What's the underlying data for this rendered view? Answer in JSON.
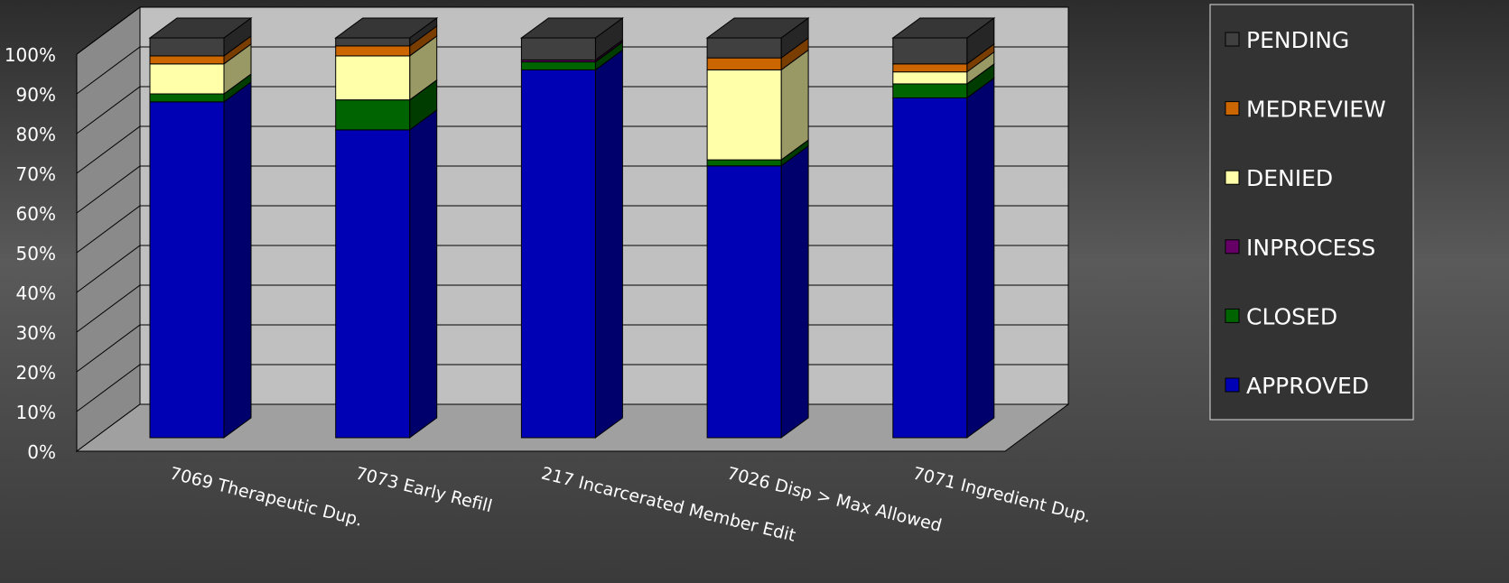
{
  "chart_data": {
    "type": "stacked_bar_3d",
    "categories": [
      "7069 Therapeutic Dup.",
      "7073  Early Refill",
      "217  Incarcerated Member Edit",
      "7026  Disp > Max Allowed",
      "7071  Ingredient Dup."
    ],
    "series": [
      {
        "name": "APPROVED",
        "color": "#0000b4",
        "values": [
          84,
          77,
          92,
          68,
          85
        ]
      },
      {
        "name": "CLOSED",
        "color": "#006400",
        "values": [
          2,
          7.5,
          2,
          1.5,
          3.5
        ]
      },
      {
        "name": "INPROCESS",
        "color": "#660066",
        "values": [
          0,
          0,
          0.5,
          0,
          0
        ]
      },
      {
        "name": "DENIED",
        "color": "#ffffaa",
        "values": [
          7.5,
          11,
          0,
          22.5,
          3
        ]
      },
      {
        "name": "MEDREVIEW",
        "color": "#cc6600",
        "values": [
          2,
          2.5,
          0,
          3,
          2
        ]
      },
      {
        "name": "PENDING",
        "color": "#404040",
        "values": [
          4.5,
          2,
          5.5,
          5,
          6.5
        ]
      }
    ],
    "ylim": [
      0,
      100
    ],
    "yticks": [
      {
        "value": 0,
        "label": "0%"
      },
      {
        "value": 10,
        "label": "10%"
      },
      {
        "value": 20,
        "label": "20%"
      },
      {
        "value": 30,
        "label": "30%"
      },
      {
        "value": 40,
        "label": "40%"
      },
      {
        "value": 50,
        "label": "50%"
      },
      {
        "value": 60,
        "label": "60%"
      },
      {
        "value": 70,
        "label": "70%"
      },
      {
        "value": 80,
        "label": "80%"
      },
      {
        "value": 90,
        "label": "90%"
      },
      {
        "value": 100,
        "label": "100%"
      }
    ],
    "grid": true
  }
}
